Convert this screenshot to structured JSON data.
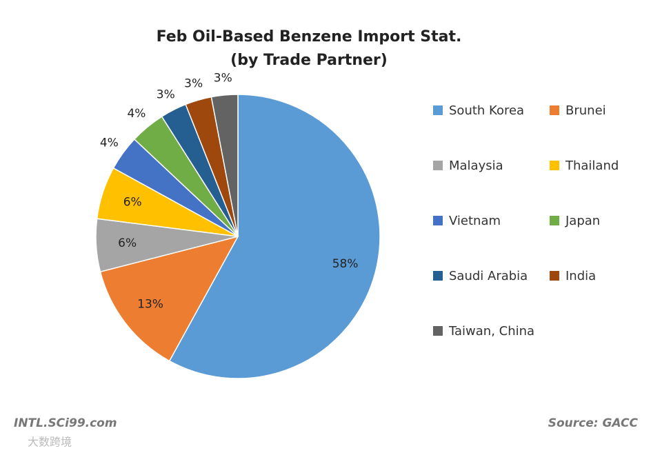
{
  "chart_data": {
    "type": "pie",
    "title_lines": [
      "Feb Oil-Based Benzene Import Stat.",
      "(by Trade Partner)"
    ],
    "categories": [
      "South Korea",
      "Brunei",
      "Malaysia",
      "Thailand",
      "Vietnam",
      "Japan",
      "Saudi Arabia",
      "India",
      "Taiwan, China"
    ],
    "values": [
      58,
      13,
      6,
      6,
      4,
      4,
      3,
      3,
      3
    ],
    "value_labels": [
      "58%",
      "13%",
      "6%",
      "6%",
      "4%",
      "4%",
      "3%",
      "3%",
      "3%"
    ],
    "colors": [
      "#5b9bd5",
      "#ed7d31",
      "#a5a5a5",
      "#ffc000",
      "#4472c4",
      "#70ad47",
      "#255e91",
      "#9e480e",
      "#636363"
    ],
    "legend": "right"
  },
  "footer": {
    "site": "INTL.SCi99.com",
    "source": "Source: GACC",
    "watermark": "大数跨境"
  }
}
